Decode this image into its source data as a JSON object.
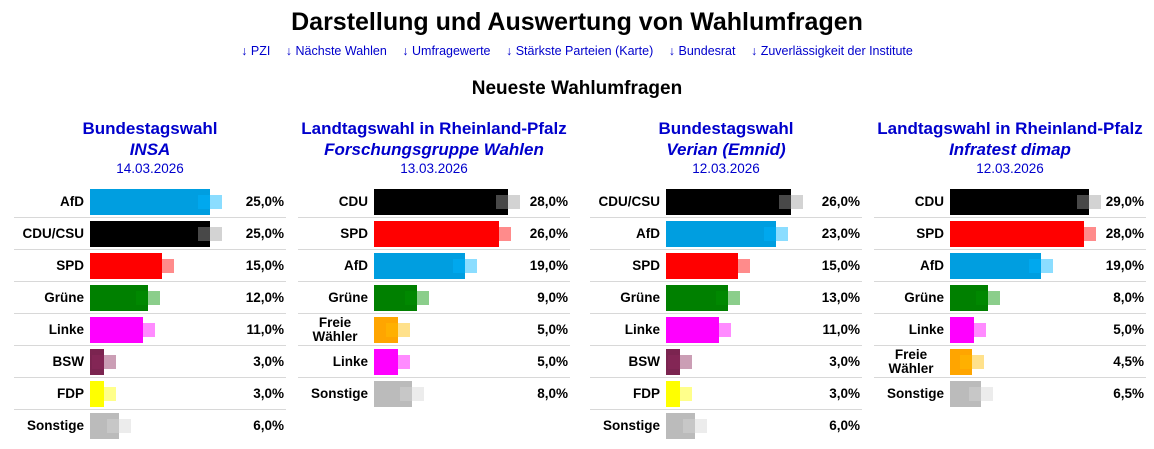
{
  "header": {
    "title": "Darstellung und Auswertung von Wahlumfragen",
    "nav": [
      {
        "arrow": "↓",
        "label": "PZI"
      },
      {
        "arrow": "↓",
        "label": "Nächste Wahlen"
      },
      {
        "arrow": "↓",
        "label": "Umfragewerte"
      },
      {
        "arrow": "↓",
        "label": "Stärkste Parteien (Karte)"
      },
      {
        "arrow": "↓",
        "label": "Bundesrat"
      },
      {
        "arrow": "↓",
        "label": "Zuverlässigkeit der Institute"
      }
    ],
    "section_title": "Neueste Wahlumfragen"
  },
  "colors": {
    "link": "#0000cc",
    "AfD": "#009ee0",
    "CDU/CSU": "#000000",
    "CDU": "#000000",
    "SPD": "#ff0000",
    "Grüne": "#008000",
    "Linke": "#ff00ff",
    "BSW": "#7b2450",
    "FDP": "#ffff00",
    "Freie Wähler": "#ffa500",
    "Sonstige": "#bbbbbb"
  },
  "chart_data": [
    {
      "type": "bar",
      "orientation": "horizontal",
      "title": "Bundestagswahl",
      "institute": "INSA",
      "date": "14.03.2026",
      "categories": [
        "AfD",
        "CDU/CSU",
        "SPD",
        "Grüne",
        "Linke",
        "BSW",
        "FDP",
        "Sonstige"
      ],
      "values": [
        25.0,
        25.0,
        15.0,
        12.0,
        11.0,
        3.0,
        3.0,
        6.0
      ],
      "value_labels": [
        "25,0%",
        "25,0%",
        "15,0%",
        "12,0%",
        "11,0%",
        "3,0%",
        "3,0%",
        "6,0%"
      ],
      "previous_values": [
        26.0,
        26.0,
        16.0,
        13.0,
        12.0,
        4.0,
        4.0,
        7.0
      ],
      "xlim": [
        0,
        30
      ]
    },
    {
      "type": "bar",
      "orientation": "horizontal",
      "title": "Landtagswahl in Rheinland-Pfalz",
      "institute": "Forschungsgruppe Wahlen",
      "date": "13.03.2026",
      "categories": [
        "CDU",
        "SPD",
        "AfD",
        "Grüne",
        "Freie Wähler",
        "Linke",
        "Sonstige"
      ],
      "values": [
        28.0,
        26.0,
        19.0,
        9.0,
        5.0,
        5.0,
        8.0
      ],
      "value_labels": [
        "28,0%",
        "26,0%",
        "19,0%",
        "9,0%",
        "5,0%",
        "5,0%",
        "8,0%"
      ],
      "previous_values": [
        30.0,
        28.0,
        21.0,
        11.0,
        7.0,
        7.0,
        10.0
      ],
      "xlim": [
        0,
        30
      ]
    },
    {
      "type": "bar",
      "orientation": "horizontal",
      "title": "Bundestagswahl",
      "institute": "Verian (Emnid)",
      "date": "12.03.2026",
      "categories": [
        "CDU/CSU",
        "AfD",
        "SPD",
        "Grüne",
        "Linke",
        "BSW",
        "FDP",
        "Sonstige"
      ],
      "values": [
        26.0,
        23.0,
        15.0,
        13.0,
        11.0,
        3.0,
        3.0,
        6.0
      ],
      "value_labels": [
        "26,0%",
        "23,0%",
        "15,0%",
        "13,0%",
        "11,0%",
        "3,0%",
        "3,0%",
        "6,0%"
      ],
      "previous_values": [
        27.0,
        24.0,
        16.0,
        14.0,
        12.0,
        4.0,
        4.0,
        7.0
      ],
      "xlim": [
        0,
        30
      ]
    },
    {
      "type": "bar",
      "orientation": "horizontal",
      "title": "Landtagswahl in Rheinland-Pfalz",
      "institute": "Infratest dimap",
      "date": "12.03.2026",
      "categories": [
        "CDU",
        "SPD",
        "AfD",
        "Grüne",
        "Linke",
        "Freie Wähler",
        "Sonstige"
      ],
      "values": [
        29.0,
        28.0,
        19.0,
        8.0,
        5.0,
        4.5,
        6.5
      ],
      "value_labels": [
        "29,0%",
        "28,0%",
        "19,0%",
        "8,0%",
        "5,0%",
        "4,5%",
        "6,5%"
      ],
      "previous_values": [
        31.0,
        30.0,
        21.0,
        10.0,
        7.0,
        6.0,
        8.0
      ],
      "xlim": [
        0,
        30
      ]
    }
  ]
}
